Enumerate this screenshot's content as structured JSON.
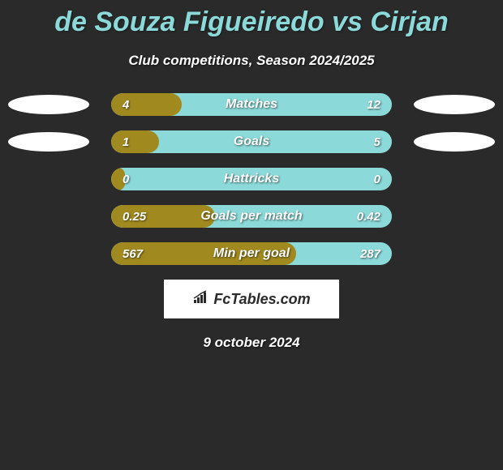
{
  "title": "de Souza Figueiredo vs Cirjan",
  "subtitle": "Club competitions, Season 2024/2025",
  "date": "9 october 2024",
  "logo_text": "FcTables.com",
  "colors": {
    "background": "#2a2a2a",
    "accent": "#8cd9d9",
    "fill": "#a08a1f",
    "text": "#ffffff",
    "ellipse": "#ffffff"
  },
  "rows": [
    {
      "label": "Matches",
      "left_value": "4",
      "right_value": "12",
      "fill_percent": 25,
      "show_ellipses": true
    },
    {
      "label": "Goals",
      "left_value": "1",
      "right_value": "5",
      "fill_percent": 17,
      "show_ellipses": true
    },
    {
      "label": "Hattricks",
      "left_value": "0",
      "right_value": "0",
      "fill_percent": 5,
      "show_ellipses": false
    },
    {
      "label": "Goals per match",
      "left_value": "0.25",
      "right_value": "0.42",
      "fill_percent": 37,
      "show_ellipses": false
    },
    {
      "label": "Min per goal",
      "left_value": "567",
      "right_value": "287",
      "fill_percent": 66,
      "show_ellipses": false
    }
  ]
}
